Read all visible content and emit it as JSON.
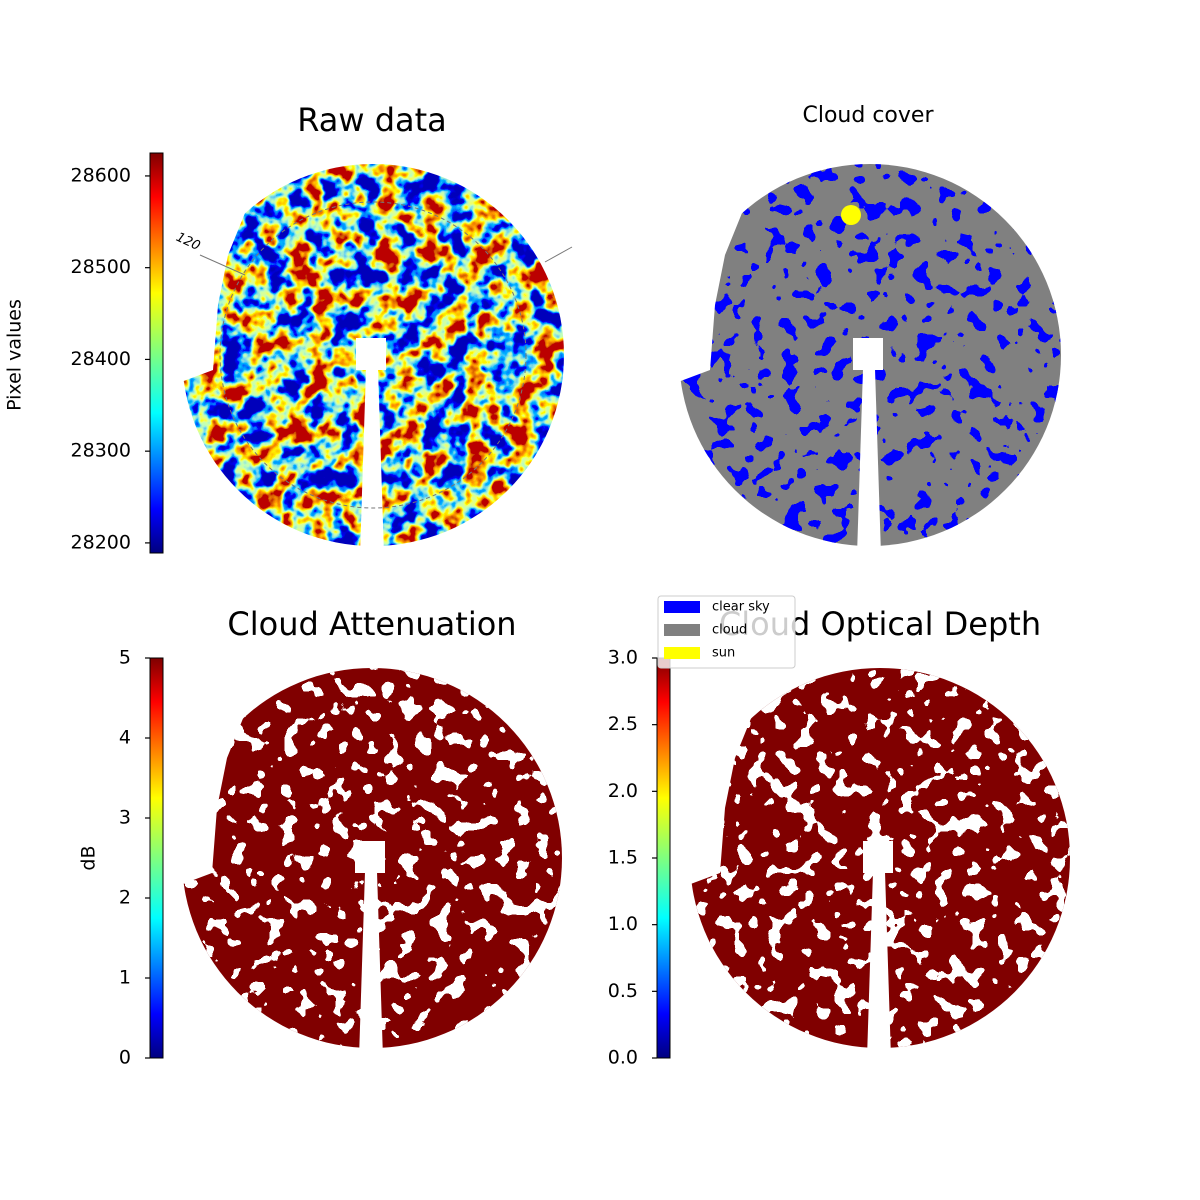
{
  "chart_data": [
    {
      "type": "image",
      "title": "Raw data",
      "colorbar_label": "Pixel values",
      "annotation": "120",
      "ylim": [
        28189,
        28625
      ],
      "yticks": [
        28200,
        28300,
        28400,
        28500,
        28600
      ]
    },
    {
      "type": "image",
      "title": "Cloud cover",
      "series": [
        {
          "name": "clear sky",
          "color": "#0000ff"
        },
        {
          "name": "cloud",
          "color": "#808080"
        },
        {
          "name": "sun",
          "color": "#ffff00"
        }
      ]
    },
    {
      "type": "image",
      "title": "Cloud Attenuation",
      "colorbar_label": "dB",
      "ylim": [
        0,
        5
      ],
      "yticks": [
        0,
        1,
        2,
        3,
        4,
        5
      ]
    },
    {
      "type": "image",
      "title": "Cloud Optical Depth",
      "ylim": [
        0,
        3
      ],
      "yticks": [
        {
          "value": 0,
          "label": "0.0"
        },
        0.5,
        {
          "value": 1,
          "label": "1.0"
        },
        1.5,
        {
          "value": 2,
          "label": "2.0"
        },
        2.5,
        {
          "value": 3,
          "label": "3.0"
        }
      ]
    }
  ]
}
